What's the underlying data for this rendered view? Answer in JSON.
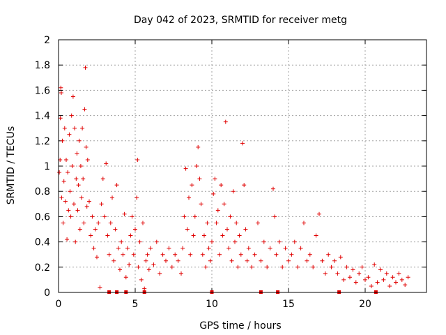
{
  "chart_data": {
    "type": "scatter",
    "title": "Day 042 of 2023, SRMTID for receiver metg",
    "xlabel": "GPS time / hours",
    "ylabel": "SRMTID / TECUs",
    "xlim": [
      0,
      24
    ],
    "ylim": [
      0,
      2
    ],
    "x_ticks": [
      0,
      5,
      10,
      15,
      20
    ],
    "x_tick_labels": [
      "0",
      "5",
      "10",
      "15",
      "20"
    ],
    "y_ticks": [
      0,
      0.2,
      0.4,
      0.6,
      0.8,
      1,
      1.2,
      1.4,
      1.6,
      1.8,
      2
    ],
    "y_tick_labels": [
      "0",
      "0.2",
      "0.4",
      "0.6",
      "0.8",
      "1",
      "1.2",
      "1.4",
      "1.6",
      "1.8",
      "2"
    ],
    "grid": true,
    "marker": "+",
    "series_color": "#e00000",
    "series": [
      {
        "name": "SRMTID",
        "points": [
          [
            0.05,
            0.95
          ],
          [
            0.1,
            1.05
          ],
          [
            0.12,
            1.38
          ],
          [
            0.15,
            1.62
          ],
          [
            0.18,
            1.58
          ],
          [
            0.2,
            0.75
          ],
          [
            0.25,
            1.2
          ],
          [
            0.3,
            0.55
          ],
          [
            0.35,
            0.88
          ],
          [
            0.4,
            1.3
          ],
          [
            0.45,
            0.72
          ],
          [
            0.5,
            1.05
          ],
          [
            0.55,
            0.42
          ],
          [
            0.6,
            0.95
          ],
          [
            0.65,
            0.65
          ],
          [
            0.7,
            1.25
          ],
          [
            0.75,
            0.8
          ],
          [
            0.8,
            0.6
          ],
          [
            0.85,
            1.4
          ],
          [
            0.9,
            1.0
          ],
          [
            0.95,
            1.55
          ],
          [
            1.0,
            0.7
          ],
          [
            1.05,
            1.3
          ],
          [
            1.1,
            0.4
          ],
          [
            1.15,
            0.9
          ],
          [
            1.2,
            1.1
          ],
          [
            1.25,
            0.65
          ],
          [
            1.3,
            0.85
          ],
          [
            1.35,
            1.2
          ],
          [
            1.4,
            0.5
          ],
          [
            1.45,
            1.0
          ],
          [
            1.5,
            0.75
          ],
          [
            1.55,
            1.3
          ],
          [
            1.6,
            0.9
          ],
          [
            1.65,
            0.55
          ],
          [
            1.7,
            1.45
          ],
          [
            1.75,
            1.78
          ],
          [
            1.8,
            1.15
          ],
          [
            1.85,
            0.68
          ],
          [
            1.9,
            1.05
          ],
          [
            2.0,
            0.72
          ],
          [
            2.1,
            0.45
          ],
          [
            2.2,
            0.6
          ],
          [
            2.3,
            0.35
          ],
          [
            2.4,
            0.5
          ],
          [
            2.5,
            0.28
          ],
          [
            2.6,
            0.55
          ],
          [
            2.7,
            0.04
          ],
          [
            2.8,
            0.7
          ],
          [
            2.9,
            0.9
          ],
          [
            3.0,
            0.6
          ],
          [
            3.1,
            1.02
          ],
          [
            3.2,
            0.45
          ],
          [
            3.3,
            0.3
          ],
          [
            3.4,
            0.55
          ],
          [
            3.5,
            0.75
          ],
          [
            3.6,
            0.25
          ],
          [
            3.7,
            0.5
          ],
          [
            3.8,
            0.85
          ],
          [
            3.9,
            0.35
          ],
          [
            4.0,
            0.18
          ],
          [
            4.1,
            0.4
          ],
          [
            4.2,
            0.3
          ],
          [
            4.3,
            0.62
          ],
          [
            4.4,
            0.12
          ],
          [
            4.5,
            0.35
          ],
          [
            4.6,
            0.22
          ],
          [
            4.7,
            0.45
          ],
          [
            4.8,
            0.6
          ],
          [
            4.9,
            0.3
          ],
          [
            5.0,
            0.5
          ],
          [
            5.1,
            0.75
          ],
          [
            5.15,
            1.05
          ],
          [
            5.2,
            0.2
          ],
          [
            5.3,
            0.4
          ],
          [
            5.4,
            0.1
          ],
          [
            5.5,
            0.55
          ],
          [
            5.6,
            0.03
          ],
          [
            5.7,
            0.25
          ],
          [
            5.8,
            0.3
          ],
          [
            5.9,
            0.18
          ],
          [
            6.0,
            0.35
          ],
          [
            6.2,
            0.22
          ],
          [
            6.4,
            0.4
          ],
          [
            6.6,
            0.15
          ],
          [
            6.8,
            0.3
          ],
          [
            7.0,
            0.25
          ],
          [
            7.2,
            0.35
          ],
          [
            7.4,
            0.2
          ],
          [
            7.6,
            0.3
          ],
          [
            7.8,
            0.25
          ],
          [
            8.0,
            0.15
          ],
          [
            8.1,
            0.35
          ],
          [
            8.2,
            0.6
          ],
          [
            8.3,
            0.98
          ],
          [
            8.4,
            0.5
          ],
          [
            8.5,
            0.75
          ],
          [
            8.6,
            0.3
          ],
          [
            8.7,
            0.85
          ],
          [
            8.8,
            0.45
          ],
          [
            8.9,
            0.6
          ],
          [
            9.0,
            1.0
          ],
          [
            9.1,
            1.15
          ],
          [
            9.2,
            0.9
          ],
          [
            9.3,
            0.7
          ],
          [
            9.4,
            0.3
          ],
          [
            9.5,
            0.45
          ],
          [
            9.6,
            0.2
          ],
          [
            9.7,
            0.55
          ],
          [
            9.8,
            0.35
          ],
          [
            9.9,
            0.25
          ],
          [
            10.0,
            0.4
          ],
          [
            10.1,
            0.78
          ],
          [
            10.2,
            0.9
          ],
          [
            10.3,
            0.55
          ],
          [
            10.4,
            0.65
          ],
          [
            10.5,
            0.3
          ],
          [
            10.6,
            0.85
          ],
          [
            10.7,
            0.45
          ],
          [
            10.8,
            0.7
          ],
          [
            10.9,
            1.35
          ],
          [
            11.0,
            0.5
          ],
          [
            11.1,
            0.35
          ],
          [
            11.2,
            0.6
          ],
          [
            11.3,
            0.25
          ],
          [
            11.4,
            0.8
          ],
          [
            11.5,
            0.4
          ],
          [
            11.6,
            0.55
          ],
          [
            11.7,
            0.2
          ],
          [
            11.8,
            0.45
          ],
          [
            11.9,
            0.3
          ],
          [
            12.0,
            1.18
          ],
          [
            12.1,
            0.85
          ],
          [
            12.2,
            0.5
          ],
          [
            12.3,
            0.25
          ],
          [
            12.4,
            0.35
          ],
          [
            12.6,
            0.2
          ],
          [
            12.8,
            0.3
          ],
          [
            13.0,
            0.55
          ],
          [
            13.2,
            0.25
          ],
          [
            13.4,
            0.4
          ],
          [
            13.6,
            0.2
          ],
          [
            13.8,
            0.35
          ],
          [
            14.0,
            0.82
          ],
          [
            14.1,
            0.6
          ],
          [
            14.2,
            0.3
          ],
          [
            14.4,
            0.4
          ],
          [
            14.6,
            0.2
          ],
          [
            14.8,
            0.35
          ],
          [
            15.0,
            0.25
          ],
          [
            15.2,
            0.3
          ],
          [
            15.4,
            0.4
          ],
          [
            15.6,
            0.2
          ],
          [
            15.8,
            0.35
          ],
          [
            16.0,
            0.55
          ],
          [
            16.2,
            0.25
          ],
          [
            16.4,
            0.3
          ],
          [
            16.6,
            0.2
          ],
          [
            16.8,
            0.45
          ],
          [
            17.0,
            0.62
          ],
          [
            17.2,
            0.25
          ],
          [
            17.4,
            0.15
          ],
          [
            17.6,
            0.3
          ],
          [
            17.8,
            0.2
          ],
          [
            18.0,
            0.25
          ],
          [
            18.2,
            0.15
          ],
          [
            18.4,
            0.28
          ],
          [
            18.6,
            0.1
          ],
          [
            18.8,
            0.2
          ],
          [
            19.0,
            0.12
          ],
          [
            19.2,
            0.18
          ],
          [
            19.4,
            0.08
          ],
          [
            19.6,
            0.15
          ],
          [
            19.8,
            0.2
          ],
          [
            20.0,
            0.1
          ],
          [
            20.2,
            0.12
          ],
          [
            20.4,
            0.05
          ],
          [
            20.6,
            0.22
          ],
          [
            20.8,
            0.08
          ],
          [
            21.0,
            0.18
          ],
          [
            21.2,
            0.1
          ],
          [
            21.4,
            0.15
          ],
          [
            21.6,
            0.05
          ],
          [
            21.8,
            0.12
          ],
          [
            22.0,
            0.08
          ],
          [
            22.2,
            0.15
          ],
          [
            22.4,
            0.1
          ],
          [
            22.6,
            0.06
          ],
          [
            22.8,
            0.12
          ]
        ]
      }
    ],
    "zero_markers_x": [
      3.3,
      3.8,
      4.4,
      5.6,
      10.0,
      13.2,
      14.3,
      18.3,
      20.7
    ]
  }
}
